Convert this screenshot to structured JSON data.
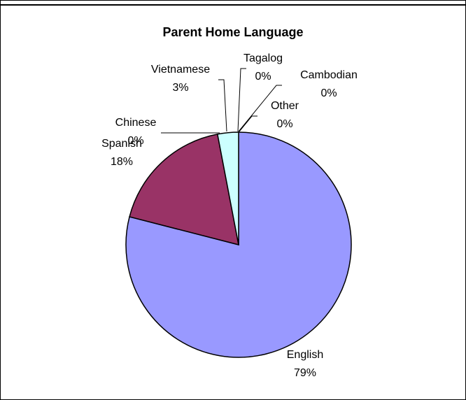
{
  "chart_data": {
    "type": "pie",
    "title": "Parent Home Language",
    "slices": [
      {
        "label": "English",
        "value": 79,
        "value_label": "79%",
        "color": "#9999ff"
      },
      {
        "label": "Spanish",
        "value": 18,
        "value_label": "18%",
        "color": "#993366"
      },
      {
        "label": "Chinese",
        "value": 0,
        "value_label": "0%",
        "color": "#ffffcc"
      },
      {
        "label": "Vietnamese",
        "value": 3,
        "value_label": "3%",
        "color": "#ccffff"
      },
      {
        "label": "Tagalog",
        "value": 0,
        "value_label": "0%",
        "color": "#660066"
      },
      {
        "label": "Cambodian",
        "value": 0,
        "value_label": "0%",
        "color": "#ff8080"
      },
      {
        "label": "Other",
        "value": 0,
        "value_label": "0%",
        "color": "#0066cc"
      }
    ],
    "legend": "none"
  }
}
